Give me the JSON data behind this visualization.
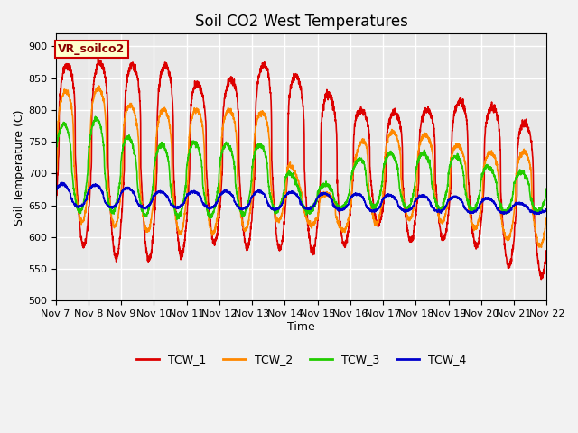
{
  "title": "Soil CO2 West Temperatures",
  "xlabel": "Time",
  "ylabel": "Soil Temperature (C)",
  "ylim": [
    500,
    920
  ],
  "yticks": [
    500,
    550,
    600,
    650,
    700,
    750,
    800,
    850,
    900
  ],
  "date_labels": [
    "Nov 7",
    "Nov 8",
    "Nov 9",
    "Nov 10",
    "Nov 11",
    "Nov 12",
    "Nov 13",
    "Nov 14",
    "Nov 15",
    "Nov 16",
    "Nov 17",
    "Nov 18",
    "Nov 19",
    "Nov 20",
    "Nov 21",
    "Nov 22"
  ],
  "annotation_text": "VR_soilco2",
  "annotation_bg": "#ffffcc",
  "annotation_edge": "#cc0000",
  "line_colors": {
    "TCW_1": "#dd0000",
    "TCW_2": "#ff8800",
    "TCW_3": "#22cc00",
    "TCW_4": "#0000cc"
  },
  "line_width": 1.2,
  "bg_color": "#e8e8e8",
  "grid_color": "#ffffff",
  "title_fontsize": 12,
  "axis_label_fontsize": 9,
  "tick_fontsize": 8,
  "legend_fontsize": 9
}
